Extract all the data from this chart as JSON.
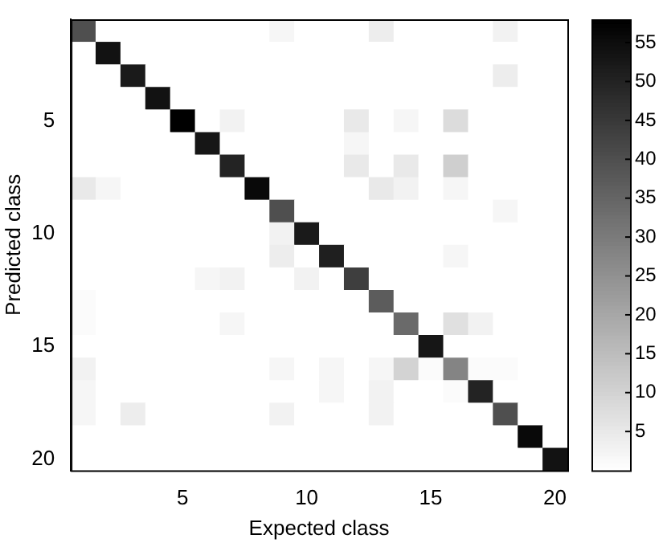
{
  "chart_data": {
    "type": "heatmap",
    "xlabel": "Expected class",
    "ylabel": "Predicted class",
    "categories": [
      null,
      null,
      null,
      null,
      "5",
      null,
      null,
      null,
      null,
      "10",
      null,
      null,
      null,
      null,
      "15",
      null,
      null,
      null,
      null,
      "20"
    ],
    "y_categories": [
      null,
      null,
      null,
      null,
      "5",
      null,
      null,
      null,
      null,
      "10",
      null,
      null,
      null,
      null,
      "15",
      null,
      null,
      null,
      null,
      "20"
    ],
    "cells": [
      [
        40,
        0,
        0,
        0,
        0,
        0,
        0,
        0,
        2,
        0,
        0,
        0,
        4,
        0,
        0,
        0,
        0,
        3,
        0,
        0
      ],
      [
        0,
        54,
        0,
        0,
        0,
        0,
        0,
        0,
        0,
        0,
        0,
        0,
        0,
        0,
        0,
        0,
        0,
        0,
        0,
        0
      ],
      [
        0,
        0,
        52,
        0,
        0,
        0,
        0,
        0,
        0,
        0,
        0,
        0,
        0,
        0,
        0,
        0,
        0,
        4,
        0,
        0
      ],
      [
        0,
        0,
        0,
        54,
        0,
        0,
        0,
        0,
        0,
        0,
        0,
        0,
        0,
        0,
        0,
        0,
        0,
        0,
        0,
        0
      ],
      [
        0,
        0,
        0,
        0,
        58,
        0,
        3,
        0,
        0,
        0,
        0,
        5,
        0,
        2,
        0,
        8,
        0,
        0,
        0,
        0
      ],
      [
        0,
        0,
        0,
        0,
        0,
        53,
        0,
        0,
        0,
        0,
        0,
        2,
        0,
        0,
        0,
        0,
        0,
        0,
        0,
        0
      ],
      [
        0,
        0,
        0,
        0,
        0,
        0,
        50,
        0,
        0,
        0,
        0,
        5,
        0,
        5,
        0,
        11,
        0,
        0,
        0,
        0
      ],
      [
        5,
        2,
        0,
        0,
        0,
        0,
        0,
        56,
        0,
        0,
        0,
        0,
        5,
        3,
        0,
        2,
        0,
        0,
        0,
        0
      ],
      [
        0,
        0,
        0,
        0,
        0,
        0,
        0,
        0,
        40,
        0,
        0,
        0,
        0,
        0,
        0,
        0,
        0,
        2,
        0,
        0
      ],
      [
        0,
        0,
        0,
        0,
        0,
        0,
        0,
        0,
        3,
        52,
        0,
        0,
        0,
        0,
        0,
        0,
        0,
        0,
        0,
        0
      ],
      [
        0,
        0,
        0,
        0,
        0,
        0,
        0,
        0,
        4,
        0,
        51,
        0,
        0,
        0,
        0,
        2,
        0,
        0,
        0,
        0
      ],
      [
        0,
        0,
        0,
        0,
        0,
        2,
        3,
        0,
        0,
        3,
        0,
        44,
        0,
        0,
        0,
        0,
        0,
        0,
        0,
        0
      ],
      [
        1,
        0,
        0,
        0,
        0,
        0,
        0,
        0,
        0,
        0,
        0,
        0,
        37,
        0,
        0,
        0,
        0,
        0,
        0,
        0
      ],
      [
        1,
        0,
        0,
        0,
        0,
        0,
        2,
        0,
        0,
        0,
        0,
        0,
        0,
        34,
        0,
        7,
        3,
        0,
        0,
        0
      ],
      [
        0,
        0,
        0,
        0,
        0,
        0,
        0,
        0,
        0,
        0,
        0,
        0,
        0,
        0,
        53,
        0,
        0,
        0,
        0,
        0
      ],
      [
        3,
        0,
        0,
        0,
        0,
        0,
        0,
        0,
        2,
        0,
        2,
        0,
        2,
        10,
        1,
        28,
        1,
        1,
        0,
        0
      ],
      [
        2,
        0,
        0,
        0,
        0,
        0,
        0,
        0,
        0,
        0,
        2,
        0,
        3,
        0,
        0,
        1,
        50,
        0,
        0,
        0
      ],
      [
        2,
        0,
        4,
        0,
        0,
        0,
        0,
        0,
        3,
        0,
        0,
        0,
        3,
        0,
        0,
        0,
        0,
        40,
        0,
        0
      ],
      [
        0,
        0,
        0,
        0,
        0,
        0,
        0,
        0,
        0,
        0,
        0,
        0,
        0,
        0,
        0,
        0,
        0,
        0,
        56,
        0
      ],
      [
        0,
        0,
        0,
        0,
        0,
        0,
        0,
        0,
        0,
        0,
        0,
        0,
        0,
        0,
        0,
        0,
        0,
        0,
        0,
        54
      ]
    ],
    "clim": [
      0,
      58
    ],
    "cticks": [
      5,
      10,
      15,
      20,
      25,
      30,
      35,
      40,
      45,
      50,
      55
    ]
  }
}
